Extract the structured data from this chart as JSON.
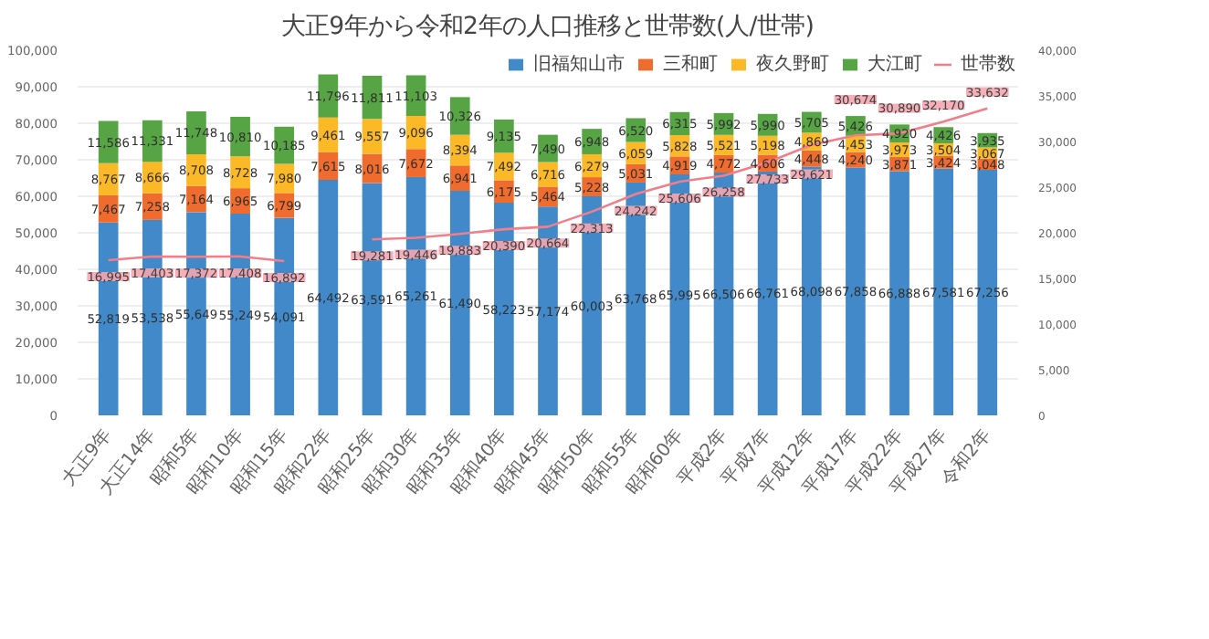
{
  "chart_data": {
    "type": "bar",
    "stacked": true,
    "title": "大正9年から令和2年の人口推移と世帯数(人/世帯)",
    "categories": [
      "大正9年",
      "大正14年",
      "昭和5年",
      "昭和10年",
      "昭和15年",
      "昭和22年",
      "昭和25年",
      "昭和30年",
      "昭和35年",
      "昭和40年",
      "昭和45年",
      "昭和50年",
      "昭和55年",
      "昭和60年",
      "平成2年",
      "平成7年",
      "平成12年",
      "平成17年",
      "平成22年",
      "平成27年",
      "令和2年"
    ],
    "series": [
      {
        "name": "旧福知山市",
        "color": "#4189c8",
        "values": [
          52819,
          53538,
          55649,
          55249,
          54091,
          64492,
          63591,
          65261,
          61490,
          58223,
          57174,
          60003,
          63768,
          65995,
          66506,
          66761,
          68098,
          67858,
          66888,
          67581,
          67256
        ],
        "value_labels": [
          "52,819",
          "53,538",
          "55,649",
          "55,249",
          "54,091",
          "64,492",
          "63,591",
          "65,261",
          "61,490",
          "58,223",
          "57,174",
          "60,003",
          "63,768",
          "65,995",
          "66,506",
          "66,761",
          "68,098",
          "67,858",
          "66,888",
          "67,581",
          "67,256"
        ]
      },
      {
        "name": "三和町",
        "color": "#ef6c2e",
        "values": [
          7467,
          7258,
          7164,
          6965,
          6799,
          7615,
          8016,
          7672,
          6941,
          6175,
          5464,
          5228,
          5031,
          4919,
          4772,
          4606,
          4448,
          4240,
          3871,
          3424,
          3048
        ],
        "value_labels": [
          "7,467",
          "7,258",
          "7,164",
          "6,965",
          "6,799",
          "7,615",
          "8,016",
          "7,672",
          "6,941",
          "6,175",
          "5,464",
          "5,228",
          "5,031",
          "4,919",
          "4,772",
          "4,606",
          "4,448",
          "4,240",
          "3,871",
          "3,424",
          "3,048"
        ]
      },
      {
        "name": "夜久野町",
        "color": "#fbb927",
        "values": [
          8767,
          8666,
          8708,
          8728,
          7980,
          9461,
          9557,
          9096,
          8394,
          7492,
          6716,
          6279,
          6059,
          5828,
          5521,
          5198,
          4869,
          4453,
          3973,
          3504,
          3067
        ],
        "value_labels": [
          "8,767",
          "8,666",
          "8,708",
          "8,728",
          "7,980",
          "9,461",
          "9,557",
          "9,096",
          "8,394",
          "7,492",
          "6,716",
          "6,279",
          "6,059",
          "5,828",
          "5,521",
          "5,198",
          "4,869",
          "4,453",
          "3,973",
          "3,504",
          "3,067"
        ]
      },
      {
        "name": "大江町",
        "color": "#56a444",
        "values": [
          11586,
          11331,
          11748,
          10810,
          10185,
          11796,
          11811,
          11103,
          10326,
          9135,
          7490,
          6948,
          6520,
          6315,
          5992,
          5990,
          5705,
          5426,
          4920,
          4426,
          3935
        ],
        "value_labels": [
          "11,586",
          "11,331",
          "11,748",
          "10,810",
          "10,185",
          "11,796",
          "11,811",
          "11,103",
          "10,326",
          "9,135",
          "7,490",
          "6,948",
          "6,520",
          "6,315",
          "5,992",
          "5,990",
          "5,705",
          "5,426",
          "4,920",
          "4,426",
          "3,935"
        ]
      },
      {
        "name": "世帯数",
        "type": "line",
        "axis": "y2",
        "color": "#f07f8a",
        "values": [
          16995,
          17403,
          17372,
          17408,
          16892,
          null,
          19281,
          19446,
          19883,
          20390,
          20664,
          22313,
          24242,
          25606,
          26258,
          27733,
          29621,
          30674,
          30890,
          32170,
          33632
        ],
        "value_labels": [
          "16,995",
          "17,403",
          "17,372",
          "17,408",
          "16,892",
          null,
          "19,281",
          "19,446",
          "19,883",
          "20,390",
          "20,664",
          "22,313",
          "24,242",
          "25,606",
          "26,258",
          "27,733",
          "29,621",
          "30,674",
          "30,890",
          "32,170",
          "33,632"
        ]
      }
    ],
    "ylim": [
      0,
      100000
    ],
    "yticks": [
      {
        "value": 0,
        "label": "0"
      },
      {
        "value": 10000,
        "label": "10,000"
      },
      {
        "value": 20000,
        "label": "20,000"
      },
      {
        "value": 30000,
        "label": "30,000"
      },
      {
        "value": 40000,
        "label": "40,000"
      },
      {
        "value": 50000,
        "label": "50,000"
      },
      {
        "value": 60000,
        "label": "60,000"
      },
      {
        "value": 70000,
        "label": "70,000"
      },
      {
        "value": 80000,
        "label": "80,000"
      },
      {
        "value": 90000,
        "label": "90,000"
      },
      {
        "value": 100000,
        "label": "100,000"
      }
    ],
    "y2lim": [
      0,
      40000
    ],
    "y2ticks": [
      {
        "value": 0,
        "label": "0"
      },
      {
        "value": 5000,
        "label": "5,000"
      },
      {
        "value": 10000,
        "label": "10,000"
      },
      {
        "value": 15000,
        "label": "15,000"
      },
      {
        "value": 20000,
        "label": "20,000"
      },
      {
        "value": 25000,
        "label": "25,000"
      },
      {
        "value": 30000,
        "label": "30,000"
      },
      {
        "value": 35000,
        "label": "35,000"
      },
      {
        "value": 40000,
        "label": "40,000"
      }
    ],
    "grid": "y",
    "legend": "top right"
  }
}
